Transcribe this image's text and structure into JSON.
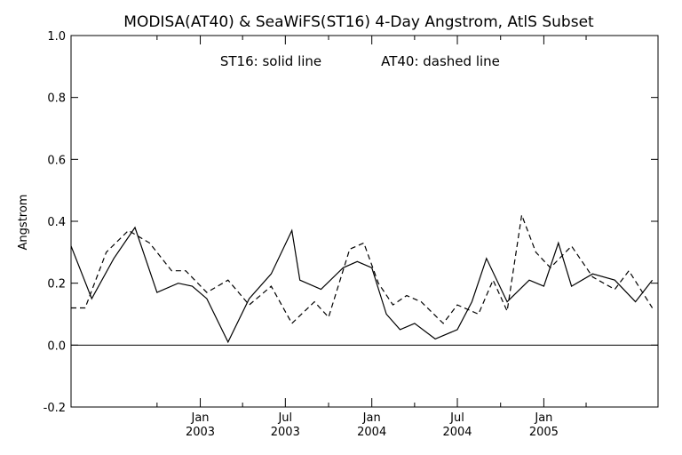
{
  "chart_data": {
    "type": "line",
    "title": "MODISA(AT40) & SeaWiFS(ST16) 4-Day Angstrom, AtlS Subset",
    "annotation_series1": "ST16: solid line",
    "annotation_series2": "AT40: dashed line",
    "xlabel": "",
    "ylabel": "Angstrom",
    "ylim": [
      -0.2,
      1.0
    ],
    "yticks": [
      "-0.2",
      "0.0",
      "0.2",
      "0.4",
      "0.6",
      "0.8",
      "1.0"
    ],
    "xticks": [
      {
        "month": "Jan",
        "year": "2003"
      },
      {
        "month": "Jul",
        "year": "2003"
      },
      {
        "month": "Jan",
        "year": "2004"
      },
      {
        "month": "Jul",
        "year": "2004"
      },
      {
        "month": "Jan",
        "year": "2005"
      }
    ],
    "xlim": [
      "2002-04",
      "2005-09"
    ],
    "reference_line_y": 0.0,
    "grid": false,
    "series": [
      {
        "style": "solid",
        "x": [
          "2002-04-01",
          "2002-05-15",
          "2002-07-01",
          "2002-08-15",
          "2002-10-01",
          "2002-11-15",
          "2002-12-15",
          "2003-01-15",
          "2003-03-01",
          "2003-04-15",
          "2003-06-01",
          "2003-07-15",
          "2003-08-01",
          "2003-09-15",
          "2003-11-01",
          "2003-12-01",
          "2004-01-01",
          "2004-02-01",
          "2004-03-01",
          "2004-04-01",
          "2004-05-15",
          "2004-07-01",
          "2004-08-01",
          "2004-09-01",
          "2004-10-15",
          "2004-12-01",
          "2005-01-01",
          "2005-02-01",
          "2005-03-01",
          "2005-04-15",
          "2005-06-01",
          "2005-07-15",
          "2005-08-20"
        ],
        "y": [
          0.32,
          0.15,
          0.28,
          0.38,
          0.17,
          0.2,
          0.19,
          0.15,
          0.01,
          0.15,
          0.23,
          0.37,
          0.21,
          0.18,
          0.25,
          0.27,
          0.25,
          0.1,
          0.05,
          0.07,
          0.02,
          0.05,
          0.14,
          0.28,
          0.14,
          0.21,
          0.19,
          0.33,
          0.19,
          0.23,
          0.21,
          0.14,
          0.21
        ]
      },
      {
        "style": "dashed",
        "x": [
          "2002-04-01",
          "2002-05-01",
          "2002-06-15",
          "2002-08-01",
          "2002-09-15",
          "2002-11-01",
          "2002-12-01",
          "2003-01-15",
          "2003-03-01",
          "2003-04-15",
          "2003-06-01",
          "2003-07-15",
          "2003-09-01",
          "2003-10-01",
          "2003-11-15",
          "2003-12-15",
          "2004-01-15",
          "2004-02-15",
          "2004-03-15",
          "2004-04-15",
          "2004-06-01",
          "2004-07-01",
          "2004-08-15",
          "2004-09-15",
          "2004-10-15",
          "2004-11-15",
          "2004-12-15",
          "2005-01-15",
          "2005-03-01",
          "2005-04-15",
          "2005-06-01",
          "2005-07-01",
          "2005-08-20"
        ],
        "y": [
          0.12,
          0.12,
          0.3,
          0.37,
          0.33,
          0.24,
          0.24,
          0.17,
          0.21,
          0.13,
          0.19,
          0.07,
          0.14,
          0.09,
          0.31,
          0.33,
          0.2,
          0.13,
          0.16,
          0.14,
          0.07,
          0.13,
          0.1,
          0.21,
          0.11,
          0.42,
          0.3,
          0.25,
          0.32,
          0.22,
          0.18,
          0.24,
          0.12
        ]
      }
    ]
  }
}
